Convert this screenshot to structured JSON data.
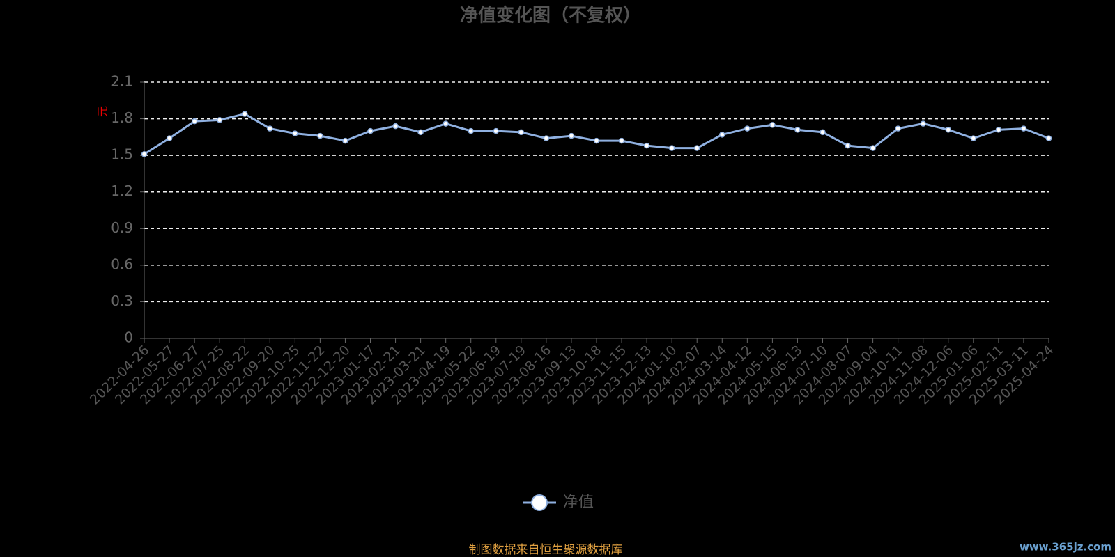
{
  "chart_data": {
    "type": "line",
    "title": "净值变化图（不复权）",
    "y_label": "元",
    "categories": [
      "2022-04-26",
      "2022-05-27",
      "2022-06-27",
      "2022-07-25",
      "2022-08-22",
      "2022-09-20",
      "2022-10-25",
      "2022-11-22",
      "2022-12-20",
      "2023-01-17",
      "2023-02-21",
      "2023-03-21",
      "2023-04-19",
      "2023-05-22",
      "2023-06-19",
      "2023-07-19",
      "2023-08-16",
      "2023-09-13",
      "2023-10-18",
      "2023-11-15",
      "2023-12-13",
      "2024-01-10",
      "2024-02-07",
      "2024-03-14",
      "2024-04-12",
      "2024-05-15",
      "2024-06-13",
      "2024-07-10",
      "2024-08-07",
      "2024-09-04",
      "2024-10-11",
      "2024-11-08",
      "2024-12-06",
      "2025-01-06",
      "2025-02-11",
      "2025-03-11",
      "2025-04-24"
    ],
    "series": [
      {
        "name": "净值",
        "color": "#8fb0e0",
        "values": [
          1.51,
          1.64,
          1.78,
          1.79,
          1.84,
          1.72,
          1.68,
          1.66,
          1.62,
          1.7,
          1.74,
          1.69,
          1.76,
          1.7,
          1.7,
          1.69,
          1.64,
          1.66,
          1.62,
          1.62,
          1.58,
          1.56,
          1.56,
          1.67,
          1.72,
          1.75,
          1.71,
          1.69,
          1.58,
          1.56,
          1.72,
          1.76,
          1.71,
          1.64,
          1.71,
          1.72,
          1.64
        ]
      }
    ],
    "ylim": [
      0,
      2.1
    ],
    "yticks": [
      0,
      0.3,
      0.6,
      0.9,
      1.2,
      1.5,
      1.8,
      2.1
    ],
    "grid": true,
    "legend": "bottom",
    "source": "制图数据来自恒生聚源数据库",
    "watermark": "www.365jz.com"
  }
}
